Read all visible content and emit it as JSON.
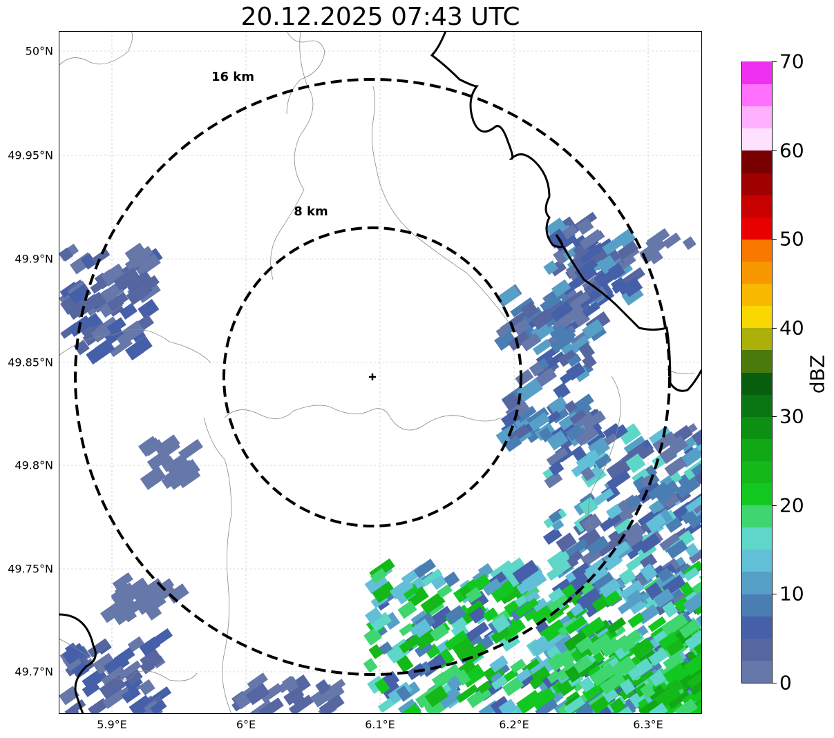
{
  "title": "20.12.2025 07:43 UTC",
  "map": {
    "x_ticks": [
      "5.9°E",
      "6°E",
      "6.1°E",
      "6.2°E",
      "6.3°E"
    ],
    "y_ticks": [
      "50°N",
      "49.95°N",
      "49.9°N",
      "49.85°N",
      "49.8°N",
      "49.75°N",
      "49.7°N"
    ],
    "rings": [
      {
        "label": "16 km",
        "radius_km": 16
      },
      {
        "label": "8 km",
        "radius_km": 8
      }
    ],
    "center": {
      "lon": 6.096,
      "lat": 49.843
    }
  },
  "colorbar": {
    "label": "dBZ",
    "tick_labels": [
      "0",
      "10",
      "20",
      "30",
      "40",
      "50",
      "60",
      "70"
    ],
    "range": [
      0,
      70
    ],
    "colors": [
      "#6677aa",
      "#5566a0",
      "#4560a8",
      "#4a7eb3",
      "#56a0c8",
      "#62bfd8",
      "#5ed6c8",
      "#3fd670",
      "#12c820",
      "#14b818",
      "#10a814",
      "#0c9012",
      "#0a7612",
      "#095e0e",
      "#4a7a0c",
      "#acb008",
      "#f8d800",
      "#f8b800",
      "#f89800",
      "#f87800",
      "#e80000",
      "#c80000",
      "#a00000",
      "#780000",
      "#ffe0ff",
      "#ffb0ff",
      "#ff70ff",
      "#f030f0"
    ]
  }
}
